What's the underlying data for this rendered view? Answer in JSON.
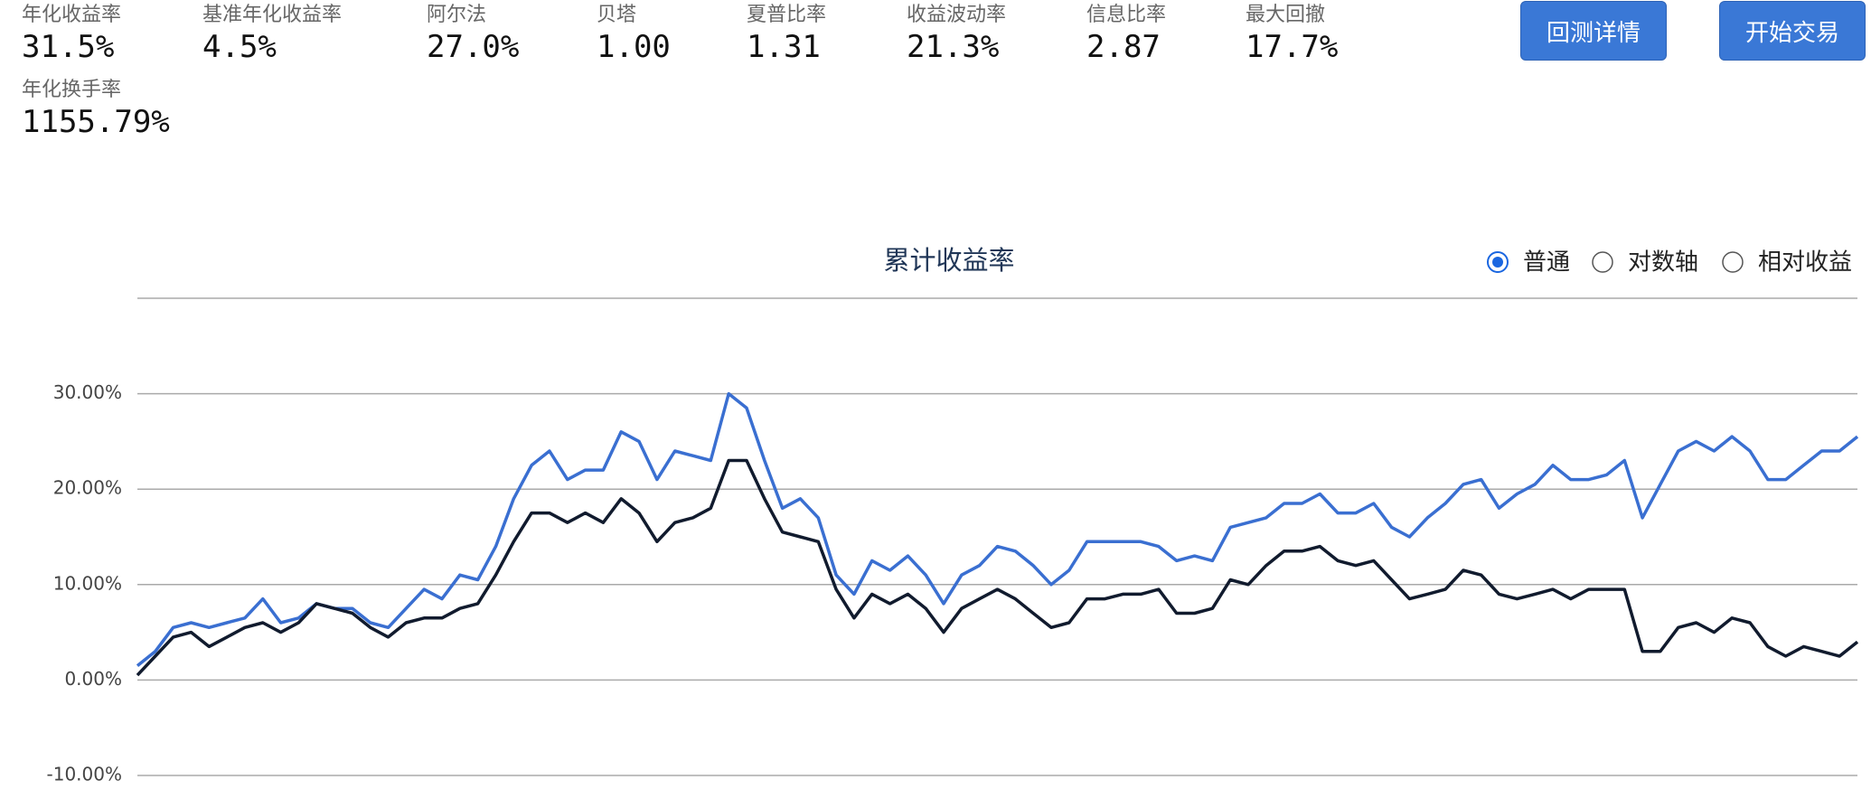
{
  "metrics": [
    {
      "label": "年化收益率",
      "value": "31.5%"
    },
    {
      "label": "基准年化收益率",
      "value": "4.5%"
    },
    {
      "label": "阿尔法",
      "value": "27.0%"
    },
    {
      "label": "贝塔",
      "value": "1.00"
    },
    {
      "label": "夏普比率",
      "value": "1.31"
    },
    {
      "label": "收益波动率",
      "value": "21.3%"
    },
    {
      "label": "信息比率",
      "value": "2.87"
    },
    {
      "label": "最大回撤",
      "value": "17.7%"
    },
    {
      "label": "年化换手率",
      "value": "1155.79%"
    }
  ],
  "buttons": [
    "回测详情",
    "开始交易"
  ],
  "chart_data": {
    "type": "line",
    "title": "累计收益率",
    "options": [
      "普通",
      "对数轴",
      "相对收益"
    ],
    "selected_option": 0,
    "ylim": [
      -10,
      40
    ],
    "yticks": [
      {
        "value": -10,
        "label": "-10.00%"
      },
      {
        "value": 0,
        "label": "0.00%"
      },
      {
        "value": 10,
        "label": "10.00%"
      },
      {
        "value": 20,
        "label": "20.00%"
      },
      {
        "value": 30,
        "label": "30.00%"
      }
    ],
    "grid": true,
    "series": [
      {
        "color": "#3a6fd1",
        "values": [
          1.5,
          3,
          5.5,
          6,
          5.5,
          6,
          6.5,
          8.5,
          6,
          6.5,
          8,
          7.5,
          7.5,
          6,
          5.5,
          7.5,
          9.5,
          8.5,
          11,
          10.5,
          14,
          19,
          22.5,
          24,
          21,
          22,
          22,
          26,
          25,
          21,
          24,
          23.5,
          23,
          30,
          28.5,
          23,
          18,
          19,
          17,
          11,
          9,
          12.5,
          11.5,
          13,
          11,
          8,
          11,
          12,
          14,
          13.5,
          12,
          10,
          11.5,
          14.5,
          14.5,
          14.5,
          14.5,
          14,
          12.5,
          13,
          12.5,
          16,
          16.5,
          17,
          18.5,
          18.5,
          19.5,
          17.5,
          17.5,
          18.5,
          16,
          15,
          17,
          18.5,
          20.5,
          21,
          18,
          19.5,
          20.5,
          22.5,
          21,
          21,
          21.5,
          23,
          17,
          20.5,
          24,
          25,
          24,
          25.5,
          24,
          21,
          21,
          22.5,
          24,
          24,
          25.5
        ]
      },
      {
        "color": "#111b2e",
        "values": [
          0.5,
          2.5,
          4.5,
          5,
          3.5,
          4.5,
          5.5,
          6,
          5,
          6,
          8,
          7.5,
          7,
          5.5,
          4.5,
          6,
          6.5,
          6.5,
          7.5,
          8,
          11,
          14.5,
          17.5,
          17.5,
          16.5,
          17.5,
          16.5,
          19,
          17.5,
          14.5,
          16.5,
          17,
          18,
          23,
          23,
          19,
          15.5,
          15,
          14.5,
          9.5,
          6.5,
          9,
          8,
          9,
          7.5,
          5,
          7.5,
          8.5,
          9.5,
          8.5,
          7,
          5.5,
          6,
          8.5,
          8.5,
          9,
          9,
          9.5,
          7,
          7,
          7.5,
          10.5,
          10,
          12,
          13.5,
          13.5,
          14,
          12.5,
          12,
          12.5,
          10.5,
          8.5,
          9,
          9.5,
          11.5,
          11,
          9,
          8.5,
          9,
          9.5,
          8.5,
          9.5,
          9.5,
          9.5,
          3,
          3,
          5.5,
          6,
          5,
          6.5,
          6,
          3.5,
          2.5,
          3.5,
          3,
          2.5,
          4
        ]
      }
    ]
  }
}
